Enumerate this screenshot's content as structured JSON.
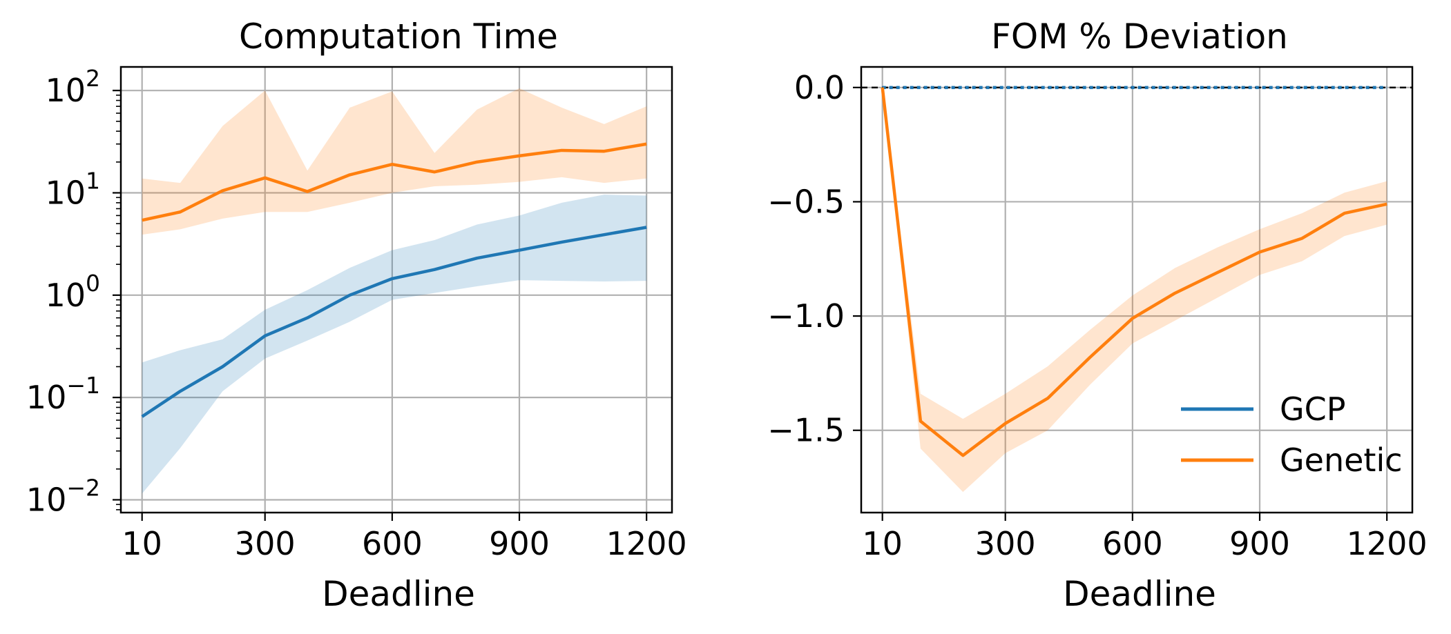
{
  "chart_data": [
    {
      "type": "line",
      "title": "Computation Time",
      "xlabel": "Deadline",
      "ylabel": "",
      "yscale": "log",
      "ylim": [
        0.0075,
        170
      ],
      "xlim": [
        -40,
        1260
      ],
      "x": [
        10,
        100,
        200,
        300,
        400,
        500,
        600,
        700,
        800,
        900,
        1000,
        1100,
        1200
      ],
      "xticks": [
        {
          "value": 10,
          "label": "10"
        },
        {
          "value": 300,
          "label": "300"
        },
        {
          "value": 600,
          "label": "600"
        },
        {
          "value": 900,
          "label": "900"
        },
        {
          "value": 1200,
          "label": "1200"
        }
      ],
      "yticks": [
        {
          "value": 0.01,
          "base": "10",
          "exp": "−2"
        },
        {
          "value": 0.1,
          "base": "10",
          "exp": "−1"
        },
        {
          "value": 1,
          "base": "10",
          "exp": "0"
        },
        {
          "value": 10,
          "base": "10",
          "exp": "1"
        },
        {
          "value": 100,
          "base": "10",
          "exp": "2"
        }
      ],
      "grid": true,
      "series": [
        {
          "name": "GCP",
          "color": "#1f77b4",
          "band_color": "#1f77b4",
          "values": [
            0.065,
            0.115,
            0.2,
            0.4,
            0.6,
            1.0,
            1.45,
            1.78,
            2.3,
            2.75,
            3.3,
            3.9,
            4.6
          ],
          "lower": [
            0.0115,
            0.032,
            0.115,
            0.24,
            0.36,
            0.55,
            0.9,
            1.05,
            1.22,
            1.4,
            1.38,
            1.36,
            1.38
          ],
          "upper": [
            0.22,
            0.29,
            0.37,
            0.72,
            1.12,
            1.85,
            2.75,
            3.45,
            4.9,
            6.0,
            8.0,
            9.6,
            9.4
          ]
        },
        {
          "name": "Genetic",
          "color": "#ff7f0e",
          "band_color": "#ff7f0e",
          "values": [
            5.4,
            6.5,
            10.5,
            14.0,
            10.3,
            15.0,
            19.0,
            16.0,
            20.0,
            23.0,
            26.0,
            25.5,
            30.0
          ],
          "lower": [
            3.9,
            4.4,
            5.6,
            6.5,
            6.5,
            8.0,
            10.0,
            11.6,
            12.0,
            12.8,
            14.2,
            12.5,
            13.8
          ],
          "upper": [
            13.8,
            12.5,
            45,
            100,
            16.5,
            68,
            98,
            24.5,
            65,
            105,
            68,
            47,
            70
          ]
        }
      ]
    },
    {
      "type": "line",
      "title": "FOM % Deviation",
      "xlabel": "Deadline",
      "ylabel": "",
      "ylim": [
        -1.86,
        0.09
      ],
      "xlim": [
        -40,
        1260
      ],
      "x": [
        10,
        100,
        200,
        300,
        400,
        500,
        600,
        700,
        800,
        900,
        1000,
        1100,
        1200
      ],
      "xticks": [
        {
          "value": 10,
          "label": "10"
        },
        {
          "value": 300,
          "label": "300"
        },
        {
          "value": 600,
          "label": "600"
        },
        {
          "value": 900,
          "label": "900"
        },
        {
          "value": 1200,
          "label": "1200"
        }
      ],
      "yticks": [
        {
          "value": 0.0,
          "label": "0.0"
        },
        {
          "value": -0.5,
          "label": "−0.5"
        },
        {
          "value": -1.0,
          "label": "−1.0"
        },
        {
          "value": -1.5,
          "label": "−1.5"
        }
      ],
      "grid": true,
      "reference_line": {
        "value": 0.0,
        "color": "#000000",
        "style": "dashed"
      },
      "legend_position": "lower-right",
      "series": [
        {
          "name": "GCP",
          "color": "#1f77b4",
          "values": [
            0,
            0,
            0,
            0,
            0,
            0,
            0,
            0,
            0,
            0,
            0,
            0,
            0
          ],
          "lower": [
            0,
            0,
            0,
            0,
            0,
            0,
            0,
            0,
            0,
            0,
            0,
            0,
            0
          ],
          "upper": [
            0,
            0,
            0,
            0,
            0,
            0,
            0,
            0,
            0,
            0,
            0,
            0,
            0
          ]
        },
        {
          "name": "Genetic",
          "color": "#ff7f0e",
          "band_color": "#ff7f0e",
          "values": [
            0,
            -1.46,
            -1.61,
            -1.47,
            -1.36,
            -1.18,
            -1.01,
            -0.9,
            -0.81,
            -0.72,
            -0.66,
            -0.55,
            -0.51
          ],
          "lower": [
            0,
            -1.58,
            -1.77,
            -1.6,
            -1.5,
            -1.3,
            -1.12,
            -1.02,
            -0.92,
            -0.82,
            -0.76,
            -0.65,
            -0.6
          ],
          "upper": [
            0,
            -1.34,
            -1.45,
            -1.34,
            -1.22,
            -1.06,
            -0.91,
            -0.79,
            -0.7,
            -0.62,
            -0.55,
            -0.46,
            -0.41
          ]
        }
      ]
    }
  ]
}
